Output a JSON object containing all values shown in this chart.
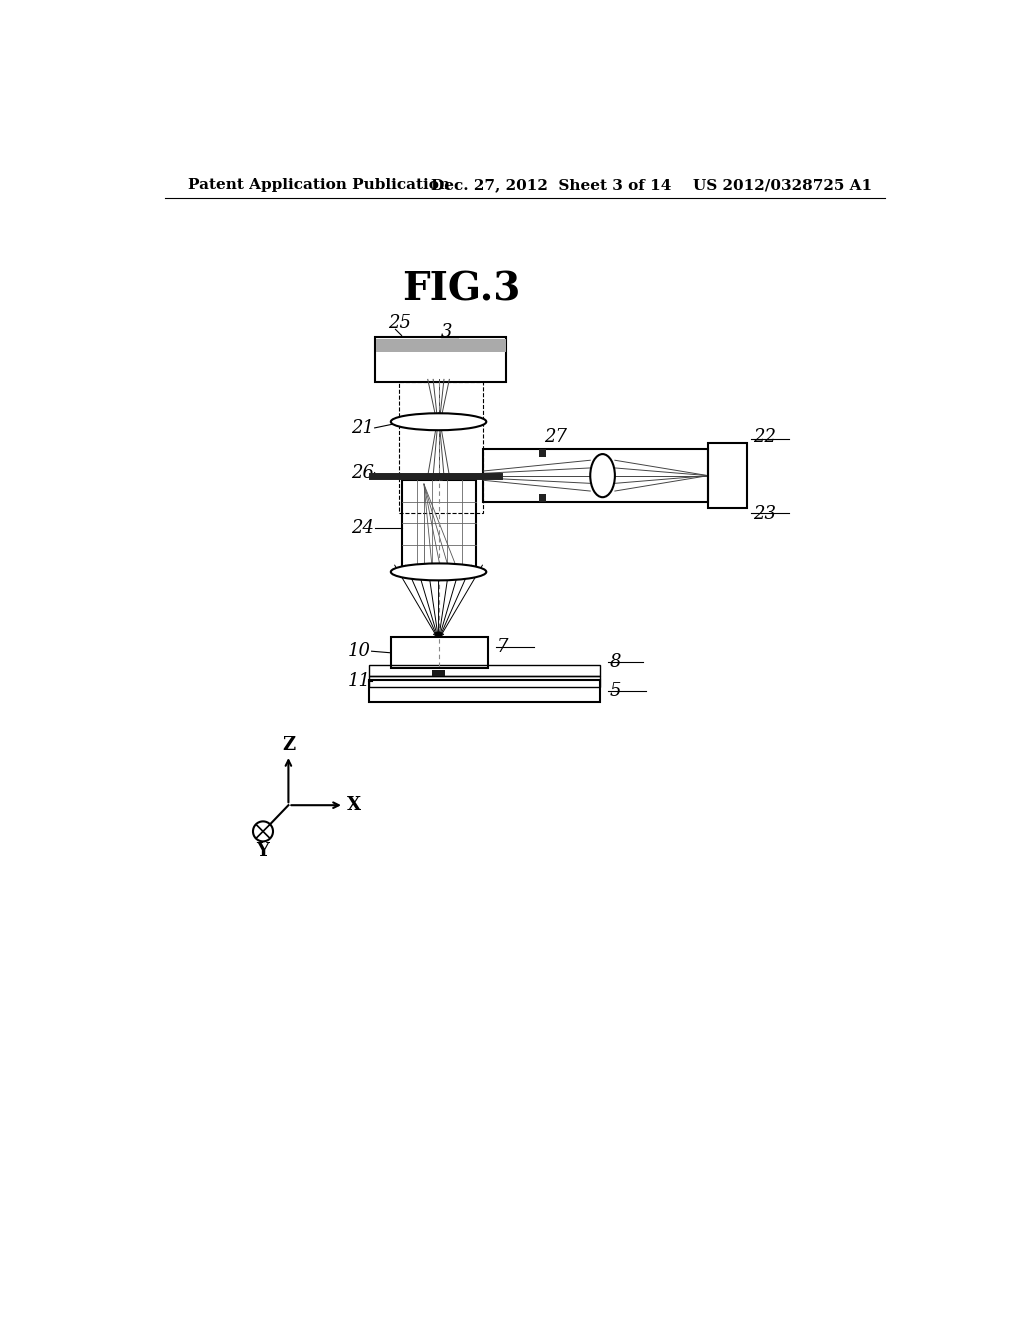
{
  "title": "FIG.3",
  "header_left": "Patent Application Publication",
  "header_mid": "Dec. 27, 2012  Sheet 3 of 14",
  "header_right": "US 2012/0328725 A1",
  "bg_color": "#ffffff",
  "line_color": "#000000",
  "label_3": "3",
  "label_25": "25",
  "label_21": "21",
  "label_26": "26",
  "label_27": "27",
  "label_22": "22",
  "label_23": "23",
  "label_24": "24",
  "label_10": "10",
  "label_7": "7",
  "label_8": "8",
  "label_5": "5",
  "label_11": "11",
  "label_Z": "Z",
  "label_X": "X",
  "label_Y": "Y"
}
